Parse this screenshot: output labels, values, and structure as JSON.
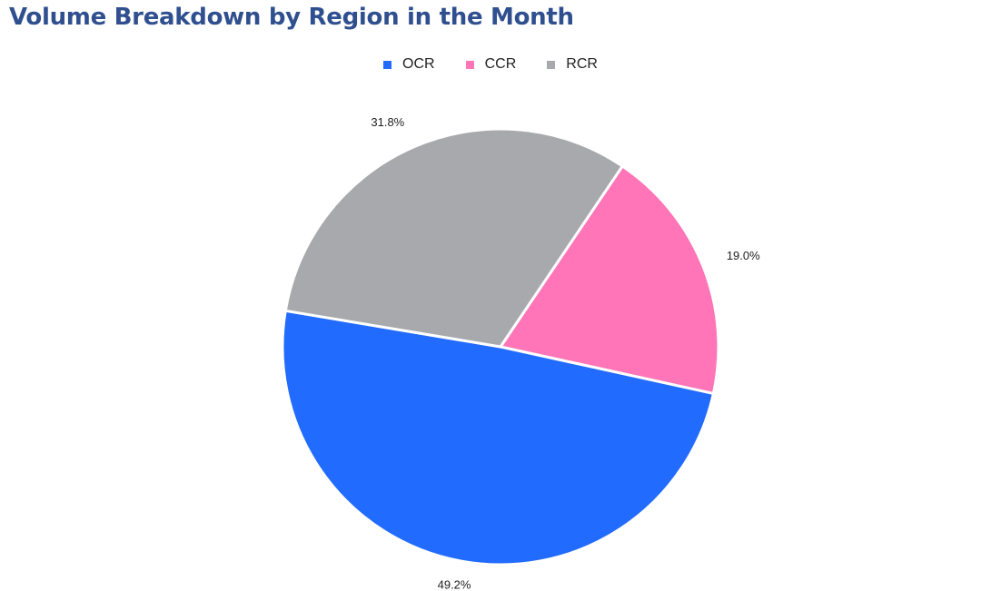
{
  "chart_data": {
    "type": "pie",
    "title": "Volume Breakdown by Region in the Month",
    "legend_position": "top-center",
    "categories": [
      "OCR",
      "CCR",
      "RCR"
    ],
    "values": [
      49.2,
      19.0,
      31.8
    ],
    "labels": [
      "49.2%",
      "19.0%",
      "31.8%"
    ],
    "colors": [
      "#226bff",
      "#ff75b7",
      "#a8a9ad"
    ]
  }
}
